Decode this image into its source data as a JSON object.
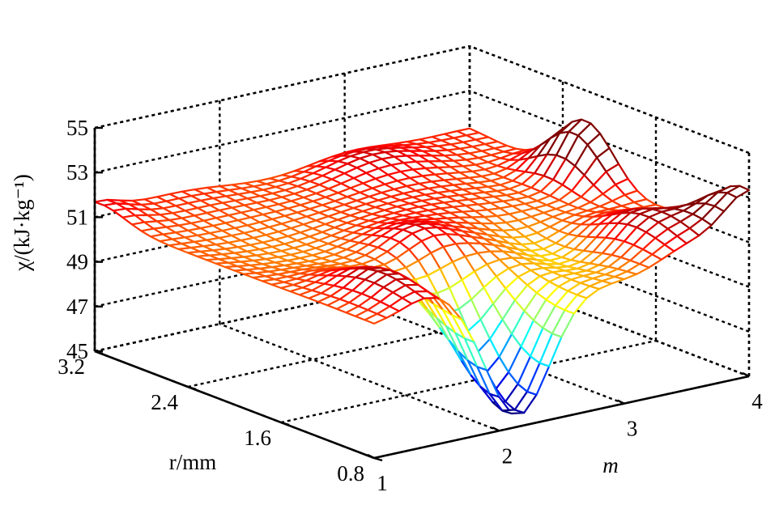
{
  "chart_data": {
    "type": "surface",
    "style": "mesh",
    "colormap": "jet",
    "zlabel": "χ/(kJ·kg⁻¹)",
    "xlabel": "m",
    "ylabel": "r/mm",
    "x_ticks": [
      "1",
      "2",
      "3",
      "4"
    ],
    "y_ticks": [
      "0.8",
      "1.6",
      "2.4",
      "3.2"
    ],
    "z_ticks": [
      "45",
      "47",
      "49",
      "51",
      "53",
      "55"
    ],
    "xlim": [
      1,
      4
    ],
    "ylim": [
      0.8,
      3.2
    ],
    "zlim": [
      45,
      55
    ],
    "grid": true,
    "surface": {
      "baseline": 51.0,
      "features": [
        {
          "label": "deep minimum",
          "m": 2.15,
          "r": 0.9,
          "z": 45.6
        },
        {
          "label": "ridge near m=2.2",
          "m": 2.2,
          "r": 1.6,
          "z": 51.9
        },
        {
          "label": "peak at m=4, r=0.8",
          "m": 4.0,
          "r": 0.8,
          "z": 53.0
        },
        {
          "label": "peak at m=4, r=2.2",
          "m": 4.0,
          "r": 2.2,
          "z": 54.0
        },
        {
          "label": "corner at m=1, r=3.2",
          "m": 1.0,
          "r": 3.2,
          "z": 51.7
        }
      ]
    }
  }
}
